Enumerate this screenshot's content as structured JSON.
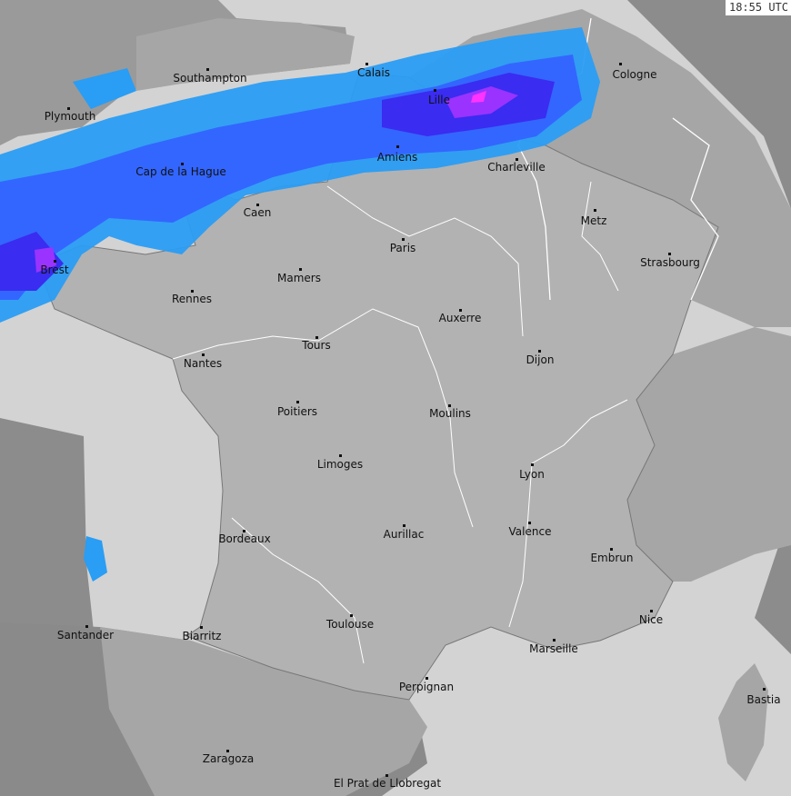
{
  "timestamp": "18:55 UTC",
  "colors": {
    "outside_range": "#8c8c8c",
    "sea": "#d3d3d3",
    "france_land": "#b2b2b2",
    "neighbor_land": "#a6a6a6",
    "border": "#ffffff",
    "precip_light": "#2a9df4",
    "precip_moderate": "#3366ff",
    "precip_heavy": "#3a2cf0",
    "precip_very_heavy": "#9a33ff",
    "precip_extreme": "#ff33ff"
  },
  "cities": [
    {
      "name": "Southampton"
    },
    {
      "name": "Calais"
    },
    {
      "name": "Cologne"
    },
    {
      "name": "Plymouth"
    },
    {
      "name": "Lille"
    },
    {
      "name": "Amiens"
    },
    {
      "name": "Cap de la Hague"
    },
    {
      "name": "Charleville"
    },
    {
      "name": "Caen"
    },
    {
      "name": "Metz"
    },
    {
      "name": "Paris"
    },
    {
      "name": "Brest"
    },
    {
      "name": "Strasbourg"
    },
    {
      "name": "Mamers"
    },
    {
      "name": "Rennes"
    },
    {
      "name": "Auxerre"
    },
    {
      "name": "Tours"
    },
    {
      "name": "Nantes"
    },
    {
      "name": "Dijon"
    },
    {
      "name": "Poitiers"
    },
    {
      "name": "Moulins"
    },
    {
      "name": "Limoges"
    },
    {
      "name": "Lyon"
    },
    {
      "name": "Valence"
    },
    {
      "name": "Bordeaux"
    },
    {
      "name": "Aurillac"
    },
    {
      "name": "Embrun"
    },
    {
      "name": "Nice"
    },
    {
      "name": "Toulouse"
    },
    {
      "name": "Santander"
    },
    {
      "name": "Biarritz"
    },
    {
      "name": "Marseille"
    },
    {
      "name": "Perpignan"
    },
    {
      "name": "Bastia"
    },
    {
      "name": "Zaragoza"
    },
    {
      "name": "El Prat de Llobregat"
    }
  ]
}
